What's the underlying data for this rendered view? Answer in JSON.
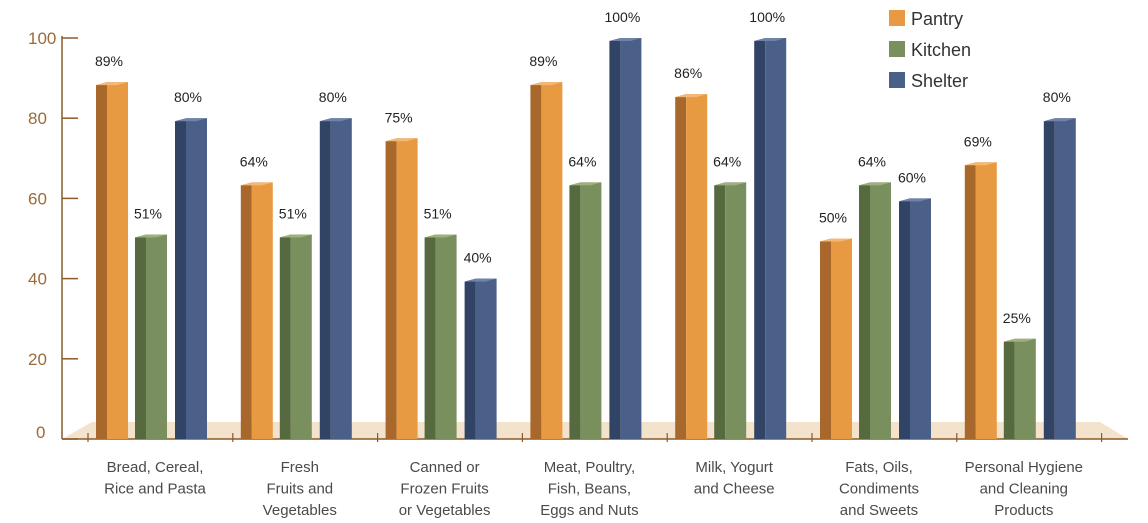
{
  "chart_data": {
    "type": "bar",
    "categories": [
      [
        "Bread, Cereal,",
        "Rice and Pasta"
      ],
      [
        "Fresh",
        "Fruits and",
        "Vegetables"
      ],
      [
        "Canned or",
        "Frozen Fruits",
        "or Vegetables"
      ],
      [
        "Meat, Poultry,",
        "Fish, Beans,",
        "Eggs and Nuts"
      ],
      [
        "Milk, Yogurt",
        "and Cheese"
      ],
      [
        "Fats, Oils,",
        "Condiments",
        "and Sweets"
      ],
      [
        "Personal Hygiene",
        "and Cleaning",
        "Products"
      ]
    ],
    "series": [
      {
        "name": "Pantry",
        "values": [
          89,
          64,
          75,
          89,
          86,
          50,
          69
        ]
      },
      {
        "name": "Kitchen",
        "values": [
          51,
          51,
          51,
          64,
          64,
          64,
          25
        ]
      },
      {
        "name": "Shelter",
        "values": [
          80,
          80,
          40,
          100,
          100,
          60,
          80
        ]
      }
    ],
    "data_label_suffix": "%",
    "ylim": [
      0,
      100
    ],
    "yticks": [
      0,
      20,
      40,
      60,
      80,
      100
    ],
    "legend_position": "top-right",
    "grid": false
  },
  "colors": {
    "Pantry": {
      "front": "#e89a43",
      "side": "#a9682b",
      "top": "#f2b877"
    },
    "Kitchen": {
      "front": "#7a8f5e",
      "side": "#56693f",
      "top": "#9db07e"
    },
    "Shelter": {
      "front": "#4a6088",
      "side": "#324466",
      "top": "#6f82a8"
    },
    "floor": "#f3e3cc",
    "axis": "#8a5a2b"
  }
}
